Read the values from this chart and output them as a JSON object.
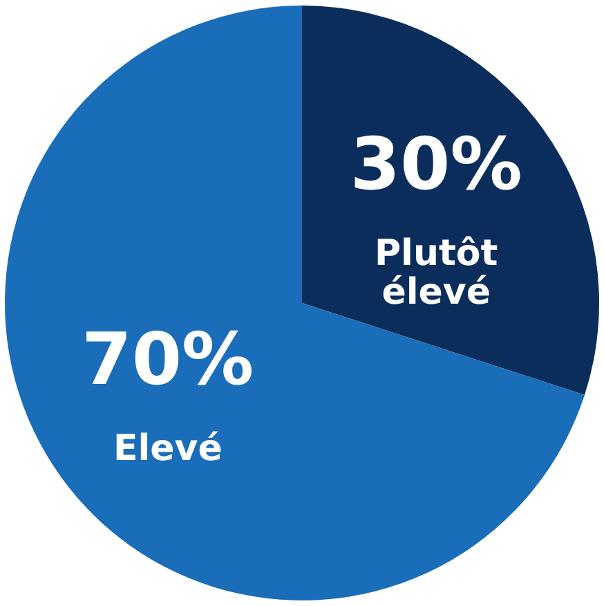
{
  "chart_data": {
    "type": "pie",
    "categories": [
      "Plutôt élevé",
      "Elevé"
    ],
    "values": [
      30,
      70
    ],
    "colors": [
      "#0b2d5b",
      "#1a6db8"
    ],
    "value_labels": [
      "30%",
      "70%"
    ]
  }
}
